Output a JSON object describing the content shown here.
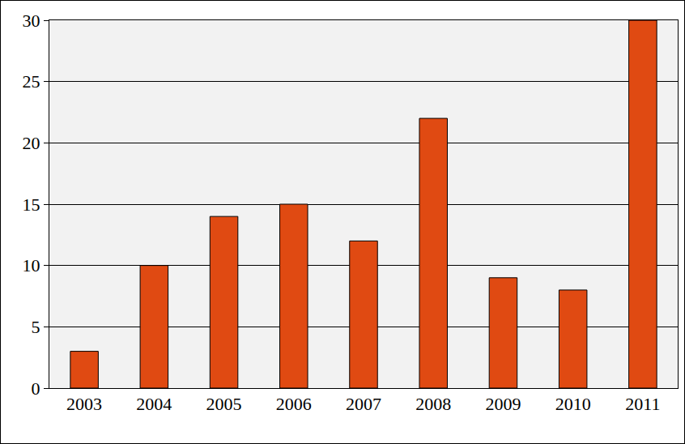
{
  "chart_data": {
    "type": "bar",
    "categories": [
      "2003",
      "2004",
      "2005",
      "2006",
      "2007",
      "2008",
      "2009",
      "2010",
      "2011"
    ],
    "values": [
      3,
      10,
      14,
      15,
      12,
      22,
      9,
      8,
      30
    ],
    "color": "#e04a12",
    "ylim": [
      0,
      30
    ],
    "yticks": [
      0,
      5,
      10,
      15,
      20,
      25,
      30
    ],
    "grid": true
  }
}
